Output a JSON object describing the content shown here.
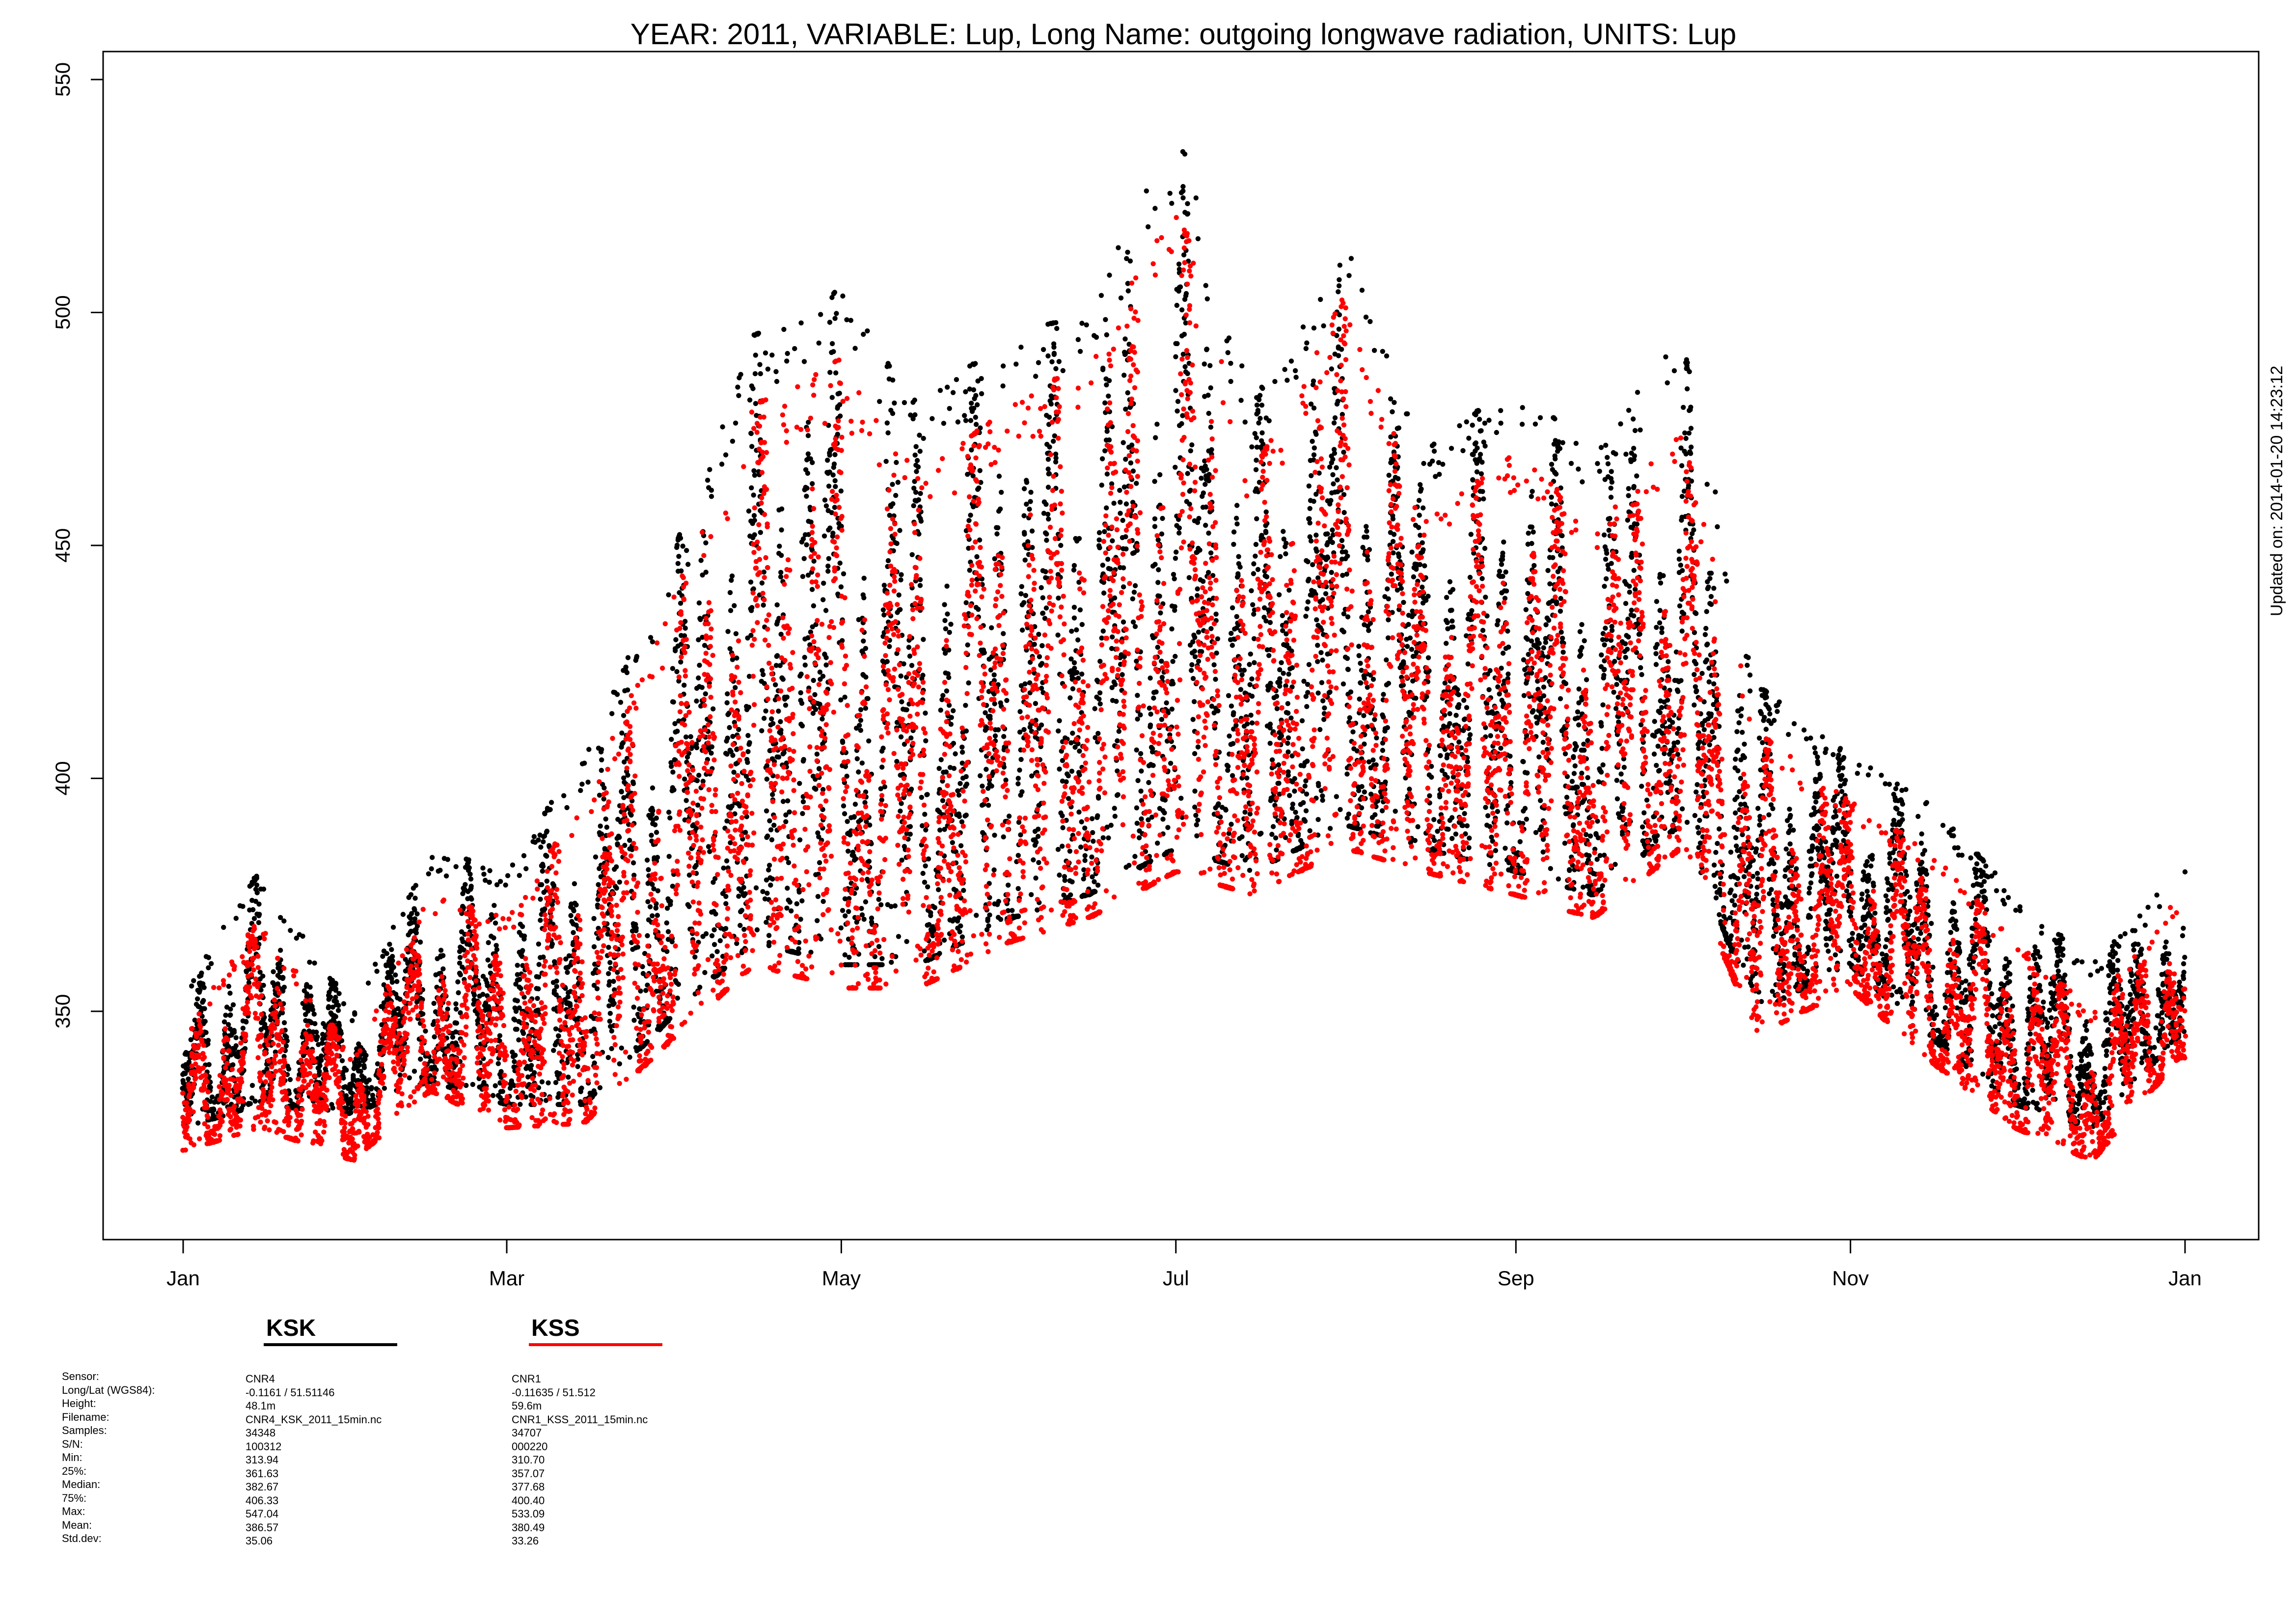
{
  "chart_data": {
    "type": "scatter",
    "title": "YEAR: 2011, VARIABLE: Lup, Long Name: outgoing  longwave  radiation, UNITS: Lup",
    "xlabel": "",
    "ylabel": "",
    "x_range": [
      "2011-01-01",
      "2012-01-01"
    ],
    "ylim": [
      301,
      556
    ],
    "y_ticks": [
      350,
      400,
      450,
      500,
      550
    ],
    "x_ticks": [
      {
        "label": "Jan",
        "date": "2011-01-01"
      },
      {
        "label": "Mar",
        "date": "2011-03-01"
      },
      {
        "label": "May",
        "date": "2011-05-01"
      },
      {
        "label": "Jul",
        "date": "2011-07-01"
      },
      {
        "label": "Sep",
        "date": "2011-09-01"
      },
      {
        "label": "Nov",
        "date": "2011-11-01"
      },
      {
        "label": "Jan",
        "date": "2012-01-01"
      }
    ],
    "grid": false,
    "side_note": "Updated on: 2014-01-20 14:23:12",
    "series": [
      {
        "name": "KSK",
        "color": "#000000",
        "envelope": {
          "dates": [
            "2011-01-01",
            "2011-01-15",
            "2011-02-01",
            "2011-02-15",
            "2011-03-01",
            "2011-03-15",
            "2011-04-01",
            "2011-04-15",
            "2011-05-01",
            "2011-05-15",
            "2011-06-01",
            "2011-06-15",
            "2011-07-01",
            "2011-07-15",
            "2011-08-01",
            "2011-08-15",
            "2011-09-01",
            "2011-09-15",
            "2011-10-01",
            "2011-10-15",
            "2011-11-01",
            "2011-11-15",
            "2011-12-01",
            "2011-12-15",
            "2011-12-31"
          ],
          "low": [
            325,
            330,
            328,
            335,
            330,
            330,
            350,
            365,
            360,
            360,
            370,
            375,
            385,
            380,
            390,
            385,
            380,
            375,
            390,
            350,
            360,
            345,
            330,
            325,
            345
          ],
          "high": [
            355,
            380,
            350,
            385,
            380,
            405,
            450,
            495,
            505,
            480,
            495,
            500,
            540,
            480,
            515,
            470,
            485,
            470,
            495,
            420,
            405,
            395,
            375,
            360,
            380
          ]
        }
      },
      {
        "name": "KSS",
        "color": "#ff0000",
        "envelope": {
          "dates": [
            "2011-01-01",
            "2011-01-15",
            "2011-02-01",
            "2011-02-15",
            "2011-03-01",
            "2011-03-15",
            "2011-04-01",
            "2011-04-15",
            "2011-05-01",
            "2011-05-15",
            "2011-06-01",
            "2011-06-15",
            "2011-07-01",
            "2011-07-15",
            "2011-08-01",
            "2011-08-15",
            "2011-09-01",
            "2011-09-15",
            "2011-10-01",
            "2011-10-15",
            "2011-11-01",
            "2011-11-15",
            "2011-12-01",
            "2011-12-15",
            "2011-12-31"
          ],
          "low": [
            320,
            325,
            318,
            333,
            325,
            326,
            345,
            360,
            355,
            355,
            365,
            370,
            380,
            375,
            385,
            380,
            375,
            370,
            385,
            345,
            355,
            340,
            325,
            318,
            340
          ],
          "high": [
            345,
            370,
            340,
            375,
            370,
            395,
            440,
            480,
            490,
            465,
            480,
            490,
            525,
            465,
            505,
            455,
            470,
            455,
            475,
            410,
            395,
            385,
            365,
            350,
            375
          ]
        }
      }
    ]
  },
  "legend": {
    "items": [
      {
        "name": "KSK",
        "color": "#000000"
      },
      {
        "name": "KSS",
        "color": "#ff0000"
      }
    ]
  },
  "stats": {
    "labels": [
      "Sensor:",
      "Long/Lat (WGS84):",
      "Height:",
      "Filename:",
      "Samples:",
      "S/N:",
      "Min:",
      "25%:",
      "Median:",
      "75%:",
      "Max:",
      "Mean:",
      "Std.dev:"
    ],
    "ksk": [
      "CNR4",
      "-0.1161 / 51.51146",
      "48.1m",
      "CNR4_KSK_2011_15min.nc",
      "34348",
      "100312",
      "313.94",
      "361.63",
      "382.67",
      "406.33",
      "547.04",
      "386.57",
      "35.06"
    ],
    "kss": [
      "CNR1",
      "-0.11635 / 51.512",
      "59.6m",
      "CNR1_KSS_2011_15min.nc",
      "34707",
      "000220",
      "310.70",
      "357.07",
      "377.68",
      "400.40",
      "533.09",
      "380.49",
      "33.26"
    ]
  }
}
